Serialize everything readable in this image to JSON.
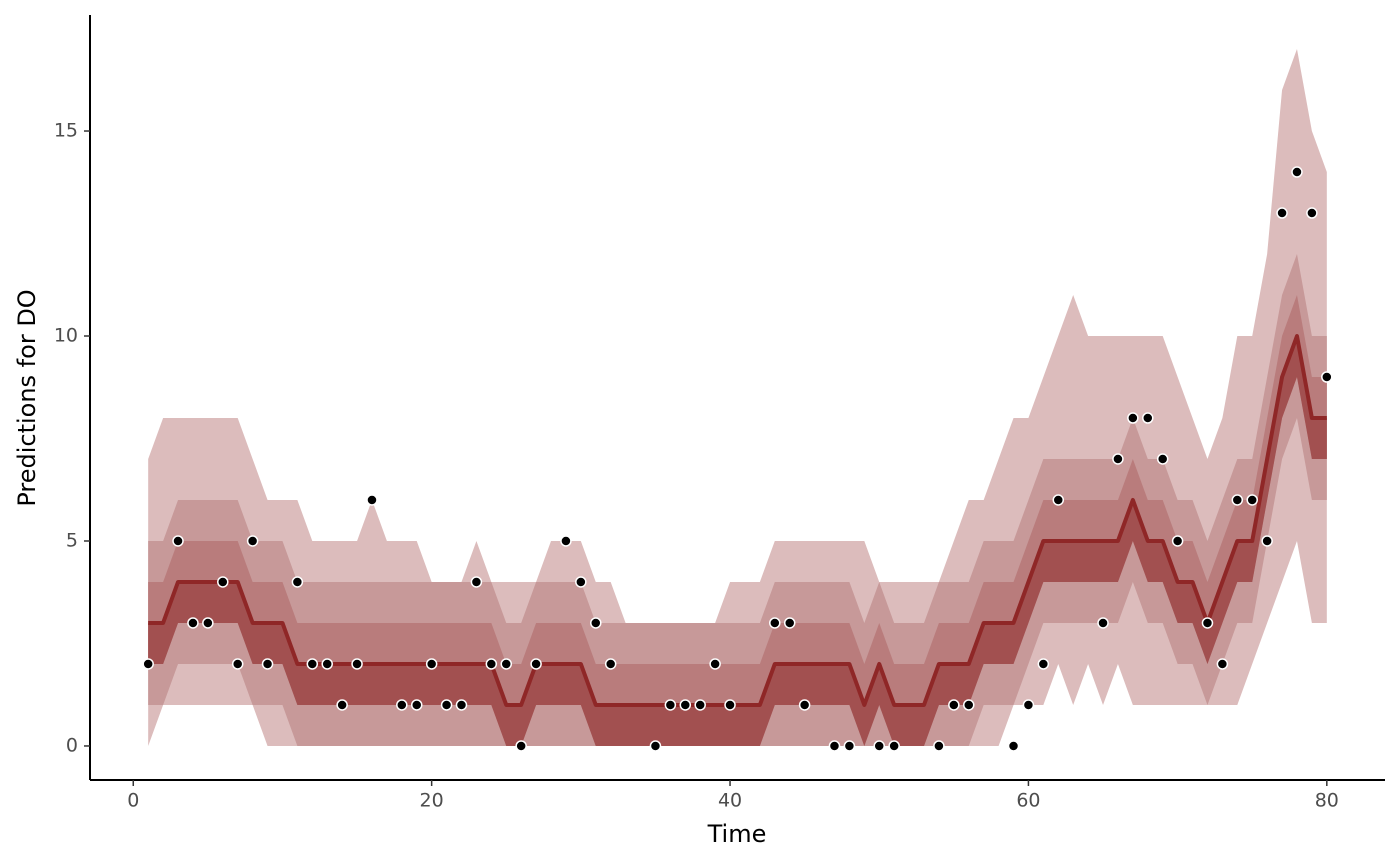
{
  "chart_data": {
    "type": "fan",
    "xlabel": "Time",
    "ylabel": "Predictions for DO",
    "xlim": [
      -2.9,
      83.9
    ],
    "ylim": [
      -0.83,
      17.83
    ],
    "xticks": [
      0,
      20,
      40,
      60,
      80
    ],
    "yticks": [
      0,
      5,
      10,
      15
    ],
    "x": [
      1,
      2,
      3,
      4,
      5,
      6,
      7,
      8,
      9,
      10,
      11,
      12,
      13,
      14,
      15,
      16,
      17,
      18,
      19,
      20,
      21,
      22,
      23,
      24,
      25,
      26,
      27,
      28,
      29,
      30,
      31,
      32,
      33,
      34,
      35,
      36,
      37,
      38,
      39,
      40,
      41,
      42,
      43,
      44,
      45,
      46,
      47,
      48,
      49,
      50,
      51,
      52,
      53,
      54,
      55,
      56,
      57,
      58,
      59,
      60,
      61,
      62,
      63,
      64,
      65,
      66,
      67,
      68,
      69,
      70,
      71,
      72,
      73,
      74,
      75,
      76,
      77,
      78,
      79,
      80
    ],
    "bands": [
      {
        "color": "#DCBCBC",
        "lower": [
          0,
          1,
          1,
          1,
          1,
          1,
          1,
          1,
          0,
          0,
          0,
          0,
          0,
          0,
          0,
          0,
          0,
          0,
          0,
          0,
          0,
          0,
          1,
          1,
          1,
          0,
          0,
          0,
          0,
          0,
          0,
          0,
          0,
          0,
          0,
          0,
          0,
          0,
          0,
          0,
          0,
          0,
          0,
          0,
          0,
          0,
          0,
          0,
          0,
          0,
          0,
          0,
          0,
          0,
          0,
          0,
          0,
          0,
          1,
          1,
          1,
          2,
          1,
          2,
          1,
          2,
          1,
          1,
          1,
          1,
          1,
          1,
          1,
          1,
          2,
          3,
          4,
          5,
          3,
          3
        ],
        "upper": [
          7,
          8,
          8,
          8,
          8,
          8,
          8,
          7,
          6,
          6,
          6,
          5,
          5,
          5,
          5,
          6,
          5,
          5,
          5,
          4,
          4,
          4,
          5,
          4,
          4,
          4,
          4,
          5,
          5,
          5,
          4,
          4,
          3,
          3,
          2,
          2,
          3,
          3,
          3,
          4,
          4,
          4,
          5,
          5,
          5,
          5,
          5,
          5,
          5,
          4,
          4,
          4,
          4,
          4,
          5,
          6,
          6,
          7,
          8,
          8,
          9,
          10,
          11,
          10,
          10,
          10,
          10,
          10,
          10,
          9,
          8,
          7,
          8,
          10,
          10,
          12,
          16,
          17,
          15,
          14
        ]
      },
      {
        "color": "#C79999",
        "lower": [
          1,
          1,
          2,
          2,
          2,
          2,
          2,
          1,
          1,
          1,
          0,
          0,
          0,
          0,
          0,
          0,
          0,
          0,
          0,
          0,
          0,
          0,
          0,
          0,
          0,
          0,
          0,
          0,
          0,
          0,
          0,
          0,
          0,
          0,
          0,
          0,
          0,
          0,
          0,
          0,
          0,
          0,
          0,
          0,
          0,
          0,
          0,
          0,
          0,
          0,
          0,
          0,
          0,
          0,
          0,
          0,
          1,
          1,
          1,
          2,
          3,
          3,
          3,
          3,
          3,
          3,
          4,
          3,
          3,
          2,
          2,
          1,
          2,
          3,
          3,
          5,
          7,
          8,
          6,
          6
        ],
        "upper": [
          5,
          5,
          6,
          6,
          6,
          6,
          6,
          5,
          5,
          5,
          4,
          4,
          4,
          4,
          4,
          4,
          4,
          4,
          4,
          4,
          4,
          4,
          4,
          4,
          3,
          3,
          4,
          4,
          4,
          4,
          3,
          3,
          3,
          3,
          3,
          3,
          3,
          3,
          3,
          3,
          3,
          3,
          4,
          4,
          4,
          4,
          4,
          4,
          3,
          4,
          3,
          3,
          3,
          4,
          4,
          4,
          5,
          5,
          5,
          6,
          7,
          7,
          7,
          7,
          7,
          7,
          8,
          7,
          7,
          6,
          6,
          5,
          6,
          7,
          7,
          9,
          11,
          12,
          10,
          10
        ]
      },
      {
        "color": "#B97C7C",
        "lower": [
          2,
          2,
          3,
          3,
          3,
          3,
          3,
          2,
          2,
          2,
          1,
          1,
          1,
          1,
          1,
          1,
          1,
          1,
          1,
          1,
          1,
          1,
          1,
          1,
          0,
          0,
          1,
          1,
          1,
          1,
          0,
          0,
          0,
          0,
          0,
          0,
          0,
          0,
          0,
          0,
          0,
          0,
          1,
          1,
          1,
          1,
          1,
          1,
          0,
          1,
          0,
          0,
          0,
          1,
          1,
          1,
          2,
          2,
          2,
          3,
          4,
          4,
          4,
          4,
          4,
          4,
          5,
          4,
          4,
          3,
          3,
          2,
          3,
          4,
          4,
          6,
          8,
          9,
          7,
          7
        ],
        "upper": [
          4,
          4,
          5,
          5,
          5,
          5,
          5,
          4,
          4,
          4,
          3,
          3,
          3,
          3,
          3,
          3,
          3,
          3,
          3,
          3,
          3,
          3,
          3,
          3,
          2,
          2,
          3,
          3,
          3,
          3,
          2,
          2,
          2,
          2,
          2,
          2,
          2,
          2,
          2,
          2,
          2,
          2,
          3,
          3,
          3,
          3,
          3,
          3,
          2,
          3,
          2,
          2,
          2,
          3,
          3,
          3,
          4,
          4,
          4,
          5,
          6,
          6,
          6,
          6,
          6,
          6,
          7,
          6,
          6,
          5,
          5,
          4,
          5,
          6,
          6,
          8,
          10,
          11,
          9,
          9
        ]
      },
      {
        "color": "#A25050",
        "lower": [
          2,
          2,
          3,
          3,
          3,
          3,
          3,
          2,
          2,
          2,
          1,
          1,
          1,
          1,
          1,
          1,
          1,
          1,
          1,
          1,
          1,
          1,
          1,
          1,
          0,
          0,
          1,
          1,
          1,
          1,
          0,
          0,
          0,
          0,
          0,
          0,
          0,
          0,
          0,
          0,
          0,
          0,
          1,
          1,
          1,
          1,
          1,
          1,
          0,
          1,
          0,
          0,
          0,
          1,
          1,
          1,
          2,
          2,
          2,
          3,
          4,
          4,
          4,
          4,
          4,
          4,
          5,
          4,
          4,
          3,
          3,
          2,
          3,
          4,
          4,
          6,
          8,
          9,
          7,
          7
        ],
        "upper": [
          3,
          3,
          4,
          4,
          4,
          4,
          4,
          3,
          3,
          3,
          2,
          2,
          2,
          2,
          2,
          2,
          2,
          2,
          2,
          2,
          2,
          2,
          2,
          2,
          1,
          1,
          2,
          2,
          2,
          2,
          1,
          1,
          1,
          1,
          1,
          1,
          1,
          1,
          1,
          1,
          1,
          1,
          2,
          2,
          2,
          2,
          2,
          2,
          1,
          2,
          1,
          1,
          1,
          2,
          2,
          2,
          3,
          3,
          3,
          4,
          5,
          5,
          5,
          5,
          5,
          5,
          6,
          5,
          5,
          4,
          4,
          3,
          4,
          5,
          5,
          7,
          9,
          10,
          8,
          8
        ]
      }
    ],
    "median": {
      "color": "#8F2727",
      "values": [
        3,
        3,
        4,
        4,
        4,
        4,
        4,
        3,
        3,
        3,
        2,
        2,
        2,
        2,
        2,
        2,
        2,
        2,
        2,
        2,
        2,
        2,
        2,
        2,
        1,
        1,
        2,
        2,
        2,
        2,
        1,
        1,
        1,
        1,
        1,
        1,
        1,
        1,
        1,
        1,
        1,
        1,
        2,
        2,
        2,
        2,
        2,
        2,
        1,
        2,
        1,
        1,
        1,
        2,
        2,
        2,
        3,
        3,
        3,
        4,
        5,
        5,
        5,
        5,
        5,
        5,
        6,
        5,
        5,
        4,
        4,
        3,
        4,
        5,
        5,
        7,
        9,
        10,
        8,
        8
      ]
    },
    "observed": {
      "color": "#000000",
      "x": [
        1,
        3,
        4,
        5,
        6,
        7,
        8,
        9,
        11,
        12,
        13,
        14,
        15,
        16,
        18,
        19,
        20,
        21,
        22,
        23,
        24,
        25,
        26,
        27,
        29,
        30,
        31,
        32,
        35,
        36,
        37,
        38,
        39,
        40,
        43,
        44,
        45,
        47,
        48,
        50,
        51,
        54,
        55,
        56,
        59,
        60,
        61,
        62,
        65,
        66,
        67,
        68,
        69,
        70,
        72,
        73,
        74,
        75,
        76,
        77,
        78,
        79,
        80
      ],
      "values": [
        2,
        5,
        3,
        3,
        4,
        2,
        5,
        2,
        4,
        2,
        2,
        1,
        2,
        6,
        1,
        1,
        2,
        1,
        1,
        4,
        2,
        2,
        0,
        2,
        5,
        4,
        3,
        2,
        0,
        1,
        1,
        1,
        2,
        1,
        3,
        3,
        1,
        0,
        0,
        0,
        0,
        0,
        1,
        1,
        0,
        1,
        2,
        6,
        3,
        7,
        8,
        8,
        7,
        5,
        3,
        2,
        6,
        6,
        5,
        13,
        14,
        13,
        9
      ]
    }
  }
}
